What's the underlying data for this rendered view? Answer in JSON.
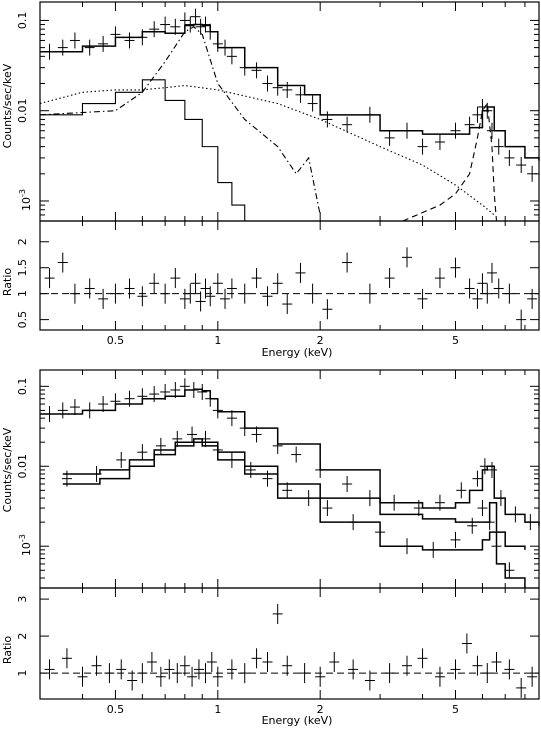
{
  "figure": {
    "panels": [
      {
        "id": "top",
        "main": {
          "ylabel": "Counts/sec/keV",
          "ytick_labels": [
            "0.1",
            "0.01",
            "10^-3"
          ]
        },
        "ratio": {
          "ylabel": "Ratio",
          "ytick_labels": [
            "0.5",
            "1",
            "1.5",
            "2"
          ]
        },
        "xlabel": "Energy (keV)",
        "xtick_labels": [
          "0.5",
          "1",
          "2",
          "5"
        ]
      },
      {
        "id": "bottom",
        "main": {
          "ylabel": "Counts/sec/keV",
          "ytick_labels": [
            "0.1",
            "0.01",
            "10^-3"
          ]
        },
        "ratio": {
          "ylabel": "Ratio",
          "ytick_labels": [
            "1",
            "2",
            "3"
          ]
        },
        "xlabel": "Energy (keV)",
        "xtick_labels": [
          "0.5",
          "1",
          "2",
          "5"
        ]
      }
    ]
  },
  "chart_data": [
    {
      "type": "line",
      "panel": "top-main",
      "xscale": "log",
      "yscale": "log",
      "xlim": [
        0.3,
        8.8
      ],
      "ylim": [
        0.0006,
        0.16
      ],
      "xlabel": "Energy (keV)",
      "ylabel": "Counts/sec/keV",
      "series": [
        {
          "style": "solid",
          "role": "total-model",
          "x": [
            0.3,
            0.4,
            0.5,
            0.6,
            0.7,
            0.8,
            0.85,
            0.9,
            0.95,
            1.0,
            1.2,
            1.5,
            1.8,
            2.0,
            3.0,
            4.0,
            5.0,
            5.5,
            6.0,
            6.2,
            6.5,
            7.0,
            8.0,
            8.8
          ],
          "y": [
            0.045,
            0.052,
            0.065,
            0.075,
            0.072,
            0.088,
            0.09,
            0.088,
            0.075,
            0.05,
            0.03,
            0.019,
            0.015,
            0.009,
            0.006,
            0.0055,
            0.0055,
            0.0065,
            0.01,
            0.011,
            0.006,
            0.004,
            0.003,
            0.0028
          ]
        },
        {
          "style": "steps",
          "role": "soft-component",
          "x": [
            0.3,
            0.4,
            0.5,
            0.6,
            0.65,
            0.7,
            0.8,
            0.9,
            1.0,
            1.1,
            1.2,
            1.3
          ],
          "y": [
            0.009,
            0.012,
            0.016,
            0.022,
            0.022,
            0.013,
            0.008,
            0.004,
            0.0016,
            0.0009,
            0.0006,
            0.0006
          ]
        },
        {
          "style": "dotted",
          "role": "powerlaw-component",
          "x": [
            0.3,
            0.4,
            0.5,
            0.6,
            0.7,
            0.8,
            1.0,
            1.5,
            2.0,
            3.0,
            4.0,
            5.0,
            6.0,
            6.5
          ],
          "y": [
            0.012,
            0.016,
            0.017,
            0.017,
            0.018,
            0.019,
            0.017,
            0.012,
            0.008,
            0.004,
            0.0025,
            0.0015,
            0.0009,
            0.0007
          ]
        },
        {
          "style": "dashdot",
          "role": "thermal-component",
          "x": [
            0.3,
            0.5,
            0.6,
            0.7,
            0.8,
            0.85,
            0.9,
            1.0,
            1.2,
            1.5,
            1.7,
            1.85,
            2.0
          ],
          "y": [
            0.009,
            0.01,
            0.016,
            0.035,
            0.075,
            0.085,
            0.07,
            0.02,
            0.008,
            0.004,
            0.002,
            0.003,
            0.0007
          ]
        },
        {
          "style": "dashed",
          "role": "fe-line",
          "x": [
            3.5,
            4.5,
            5.0,
            5.5,
            5.8,
            6.0,
            6.2,
            6.4,
            6.5,
            6.6,
            6.8
          ],
          "y": [
            0.0006,
            0.0009,
            0.0012,
            0.002,
            0.005,
            0.01,
            0.012,
            0.004,
            0.0012,
            0.0006,
            0.0006
          ]
        },
        {
          "style": "points",
          "role": "data",
          "x": [
            0.32,
            0.35,
            0.38,
            0.42,
            0.46,
            0.5,
            0.55,
            0.6,
            0.65,
            0.7,
            0.75,
            0.8,
            0.83,
            0.86,
            0.89,
            0.92,
            0.95,
            1.0,
            1.05,
            1.1,
            1.2,
            1.3,
            1.4,
            1.5,
            1.6,
            1.75,
            1.9,
            2.1,
            2.4,
            2.8,
            3.2,
            3.6,
            4.0,
            4.5,
            5.0,
            5.5,
            5.8,
            6.0,
            6.2,
            6.4,
            6.7,
            7.2,
            7.8,
            8.4
          ],
          "y": [
            0.045,
            0.05,
            0.06,
            0.05,
            0.055,
            0.07,
            0.06,
            0.065,
            0.08,
            0.09,
            0.085,
            0.1,
            0.09,
            0.11,
            0.085,
            0.09,
            0.075,
            0.055,
            0.05,
            0.04,
            0.03,
            0.028,
            0.02,
            0.018,
            0.017,
            0.015,
            0.012,
            0.008,
            0.007,
            0.009,
            0.005,
            0.006,
            0.004,
            0.0045,
            0.006,
            0.007,
            0.009,
            0.011,
            0.01,
            0.006,
            0.004,
            0.003,
            0.0025,
            0.002
          ]
        }
      ]
    },
    {
      "type": "scatter",
      "panel": "top-ratio",
      "xscale": "log",
      "xlim": [
        0.3,
        8.8
      ],
      "ylim": [
        0.3,
        2.4
      ],
      "xlabel": "Energy (keV)",
      "ylabel": "Ratio",
      "reference_line": 1,
      "x": [
        0.32,
        0.35,
        0.38,
        0.42,
        0.46,
        0.5,
        0.55,
        0.6,
        0.65,
        0.7,
        0.75,
        0.8,
        0.83,
        0.86,
        0.89,
        0.92,
        0.95,
        1.0,
        1.05,
        1.1,
        1.2,
        1.3,
        1.4,
        1.5,
        1.6,
        1.75,
        1.9,
        2.1,
        2.4,
        2.8,
        3.2,
        3.6,
        4.0,
        4.5,
        5.0,
        5.5,
        5.8,
        6.0,
        6.2,
        6.4,
        6.7,
        7.2,
        7.8,
        8.4
      ],
      "y": [
        1.3,
        1.6,
        1.0,
        1.1,
        0.9,
        1.0,
        1.1,
        0.95,
        1.2,
        1.0,
        1.3,
        0.9,
        1.0,
        1.2,
        0.85,
        1.1,
        0.95,
        1.2,
        0.9,
        1.1,
        1.0,
        1.3,
        0.95,
        1.2,
        0.8,
        1.4,
        1.0,
        0.7,
        1.6,
        1.0,
        1.3,
        1.7,
        0.9,
        1.3,
        1.5,
        1.1,
        0.9,
        1.2,
        1.0,
        1.4,
        1.1,
        1.0,
        0.5,
        0.9
      ]
    },
    {
      "type": "line",
      "panel": "bottom-main",
      "xscale": "log",
      "yscale": "log",
      "xlim": [
        0.3,
        8.8
      ],
      "ylim": [
        0.0003,
        0.16
      ],
      "xlabel": "Energy (keV)",
      "ylabel": "Counts/sec/keV",
      "series": [
        {
          "style": "solid",
          "role": "model-1",
          "x": [
            0.3,
            0.4,
            0.5,
            0.6,
            0.7,
            0.8,
            0.85,
            0.9,
            0.95,
            1.0,
            1.2,
            1.5,
            2.0,
            3.0,
            4.0,
            5.0,
            5.5,
            6.0,
            6.2,
            6.5,
            7.0,
            8.0,
            8.8
          ],
          "y": [
            0.045,
            0.05,
            0.06,
            0.07,
            0.075,
            0.09,
            0.092,
            0.088,
            0.07,
            0.048,
            0.03,
            0.019,
            0.009,
            0.0035,
            0.003,
            0.0035,
            0.005,
            0.009,
            0.01,
            0.004,
            0.0025,
            0.002,
            0.0018
          ]
        },
        {
          "style": "solid",
          "role": "model-2",
          "x": [
            0.35,
            0.45,
            0.55,
            0.65,
            0.75,
            0.85,
            0.9,
            1.0,
            1.2,
            1.5,
            2.0,
            3.0,
            4.0,
            5.0,
            6.0,
            6.3,
            6.6,
            7.0,
            8.0
          ],
          "y": [
            0.008,
            0.009,
            0.012,
            0.016,
            0.02,
            0.022,
            0.02,
            0.015,
            0.01,
            0.006,
            0.004,
            0.0025,
            0.0022,
            0.002,
            0.002,
            0.0035,
            0.0015,
            0.001,
            0.0009
          ]
        },
        {
          "style": "solid",
          "role": "model-3",
          "x": [
            0.35,
            0.45,
            0.55,
            0.65,
            0.75,
            0.85,
            0.9,
            1.0,
            1.2,
            1.5,
            2.0,
            3.0,
            4.0,
            5.0,
            6.0,
            6.3,
            6.6,
            7.0,
            8.0
          ],
          "y": [
            0.006,
            0.007,
            0.01,
            0.014,
            0.018,
            0.02,
            0.018,
            0.012,
            0.008,
            0.004,
            0.002,
            0.001,
            0.0009,
            0.0009,
            0.0012,
            0.0015,
            0.0006,
            0.0004,
            0.0003
          ]
        },
        {
          "style": "points",
          "role": "data",
          "x": [
            0.32,
            0.35,
            0.38,
            0.42,
            0.46,
            0.5,
            0.55,
            0.6,
            0.65,
            0.7,
            0.75,
            0.8,
            0.85,
            0.9,
            0.95,
            1.0,
            1.1,
            1.2,
            1.3,
            1.5,
            1.7,
            2.0,
            2.4,
            2.8,
            3.3,
            3.9,
            4.5,
            5.2,
            5.8,
            6.1,
            6.4,
            6.8,
            7.5,
            8.3
          ],
          "y": [
            0.045,
            0.05,
            0.055,
            0.05,
            0.06,
            0.065,
            0.07,
            0.075,
            0.08,
            0.085,
            0.09,
            0.1,
            0.09,
            0.085,
            0.07,
            0.05,
            0.04,
            0.03,
            0.025,
            0.018,
            0.014,
            0.009,
            0.006,
            0.004,
            0.0035,
            0.003,
            0.0035,
            0.005,
            0.007,
            0.01,
            0.009,
            0.004,
            0.0025,
            0.002
          ]
        },
        {
          "style": "points",
          "role": "data",
          "x": [
            0.36,
            0.44,
            0.52,
            0.6,
            0.68,
            0.76,
            0.84,
            0.92,
            1.0,
            1.1,
            1.25,
            1.4,
            1.6,
            1.85,
            2.1,
            2.5,
            3.0,
            3.6,
            4.3,
            5.0,
            5.6,
            6.0,
            6.3,
            6.6,
            7.2
          ],
          "y": [
            0.007,
            0.008,
            0.012,
            0.015,
            0.018,
            0.022,
            0.025,
            0.022,
            0.016,
            0.012,
            0.009,
            0.007,
            0.005,
            0.004,
            0.003,
            0.002,
            0.0015,
            0.001,
            0.0009,
            0.0012,
            0.0018,
            0.003,
            0.002,
            0.001,
            0.0005
          ]
        }
      ]
    },
    {
      "type": "scatter",
      "panel": "bottom-ratio",
      "xscale": "log",
      "xlim": [
        0.3,
        8.8
      ],
      "ylim": [
        0.3,
        3.3
      ],
      "xlabel": "Energy (keV)",
      "ylabel": "Ratio",
      "reference_line": 1,
      "x": [
        0.32,
        0.36,
        0.4,
        0.44,
        0.48,
        0.52,
        0.56,
        0.6,
        0.64,
        0.68,
        0.72,
        0.76,
        0.8,
        0.84,
        0.88,
        0.92,
        0.96,
        1.0,
        1.1,
        1.2,
        1.3,
        1.4,
        1.5,
        1.6,
        1.8,
        2.0,
        2.2,
        2.5,
        2.8,
        3.2,
        3.6,
        4.0,
        4.5,
        5.0,
        5.4,
        5.8,
        6.2,
        6.6,
        7.2,
        7.8,
        8.4
      ],
      "y": [
        1.1,
        1.4,
        0.9,
        1.2,
        1.0,
        1.1,
        0.8,
        1.0,
        1.3,
        0.9,
        1.1,
        1.0,
        1.2,
        0.9,
        1.1,
        1.0,
        1.3,
        0.9,
        1.1,
        1.0,
        1.4,
        1.3,
        2.6,
        1.2,
        1.0,
        0.9,
        1.3,
        1.1,
        0.8,
        1.0,
        1.2,
        1.4,
        0.9,
        1.1,
        1.8,
        1.2,
        1.0,
        1.3,
        1.1,
        0.6,
        0.9
      ]
    }
  ]
}
